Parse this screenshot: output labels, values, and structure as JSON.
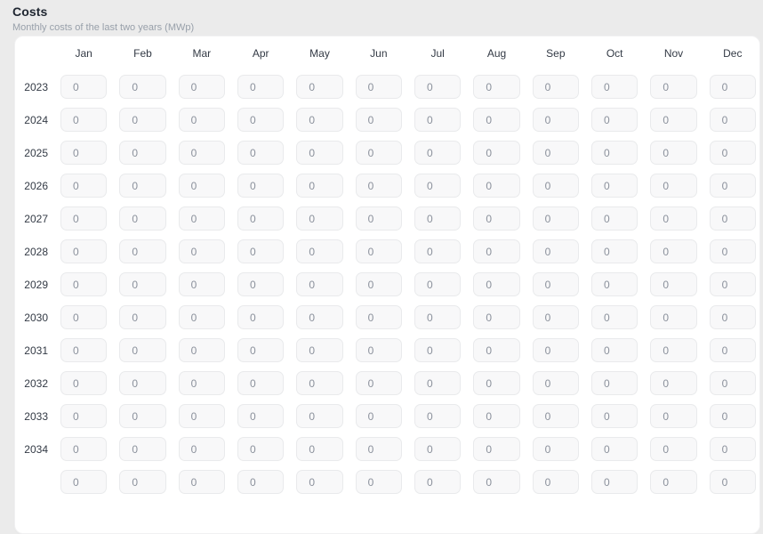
{
  "header": {
    "title": "Costs",
    "subtitle": "Monthly costs of the last two years (MWp)"
  },
  "table": {
    "months": [
      "Jan",
      "Feb",
      "Mar",
      "Apr",
      "May",
      "Jun",
      "Jul",
      "Aug",
      "Sep",
      "Oct",
      "Nov",
      "Dec"
    ],
    "years": [
      "2023",
      "2024",
      "2025",
      "2026",
      "2027",
      "2028",
      "2029",
      "2030",
      "2031",
      "2032",
      "2033",
      "2034"
    ],
    "input_value": "0",
    "partial_next_row_visible": true
  },
  "colors": {
    "page_bg": "#ebebeb",
    "card_bg": "#ffffff",
    "input_bg": "#f8f8f9",
    "input_border": "#e9eaec",
    "input_text": "#8b919c",
    "label_text": "#333a45",
    "title_text": "#1e2530",
    "subtitle_text": "#98a0aa"
  }
}
